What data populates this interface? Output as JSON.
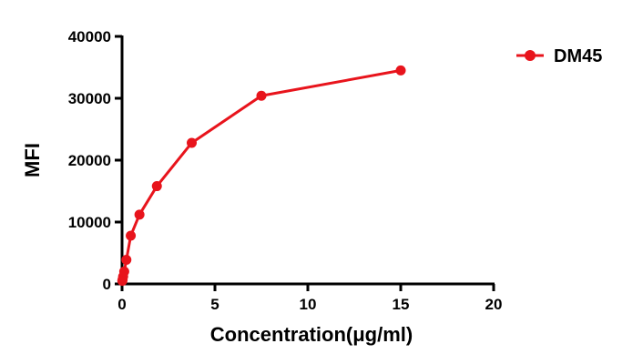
{
  "chart_data": {
    "type": "line",
    "xlabel": "Concentration(μg/ml)",
    "ylabel": "MFI",
    "xlim": [
      0,
      20
    ],
    "ylim": [
      0,
      40000
    ],
    "x_ticks": [
      0,
      5,
      10,
      15,
      20
    ],
    "y_ticks": [
      0,
      10000,
      20000,
      30000,
      40000
    ],
    "x_tick_labels": [
      "0",
      "5",
      "10",
      "15",
      "20"
    ],
    "y_tick_labels": [
      "0",
      "10000",
      "20000",
      "30000",
      "40000"
    ],
    "grid": false,
    "legend_position": "top-right",
    "series": [
      {
        "name": "DM45",
        "color": "#e8141c",
        "marker": "circle",
        "x": [
          0.0146,
          0.0293,
          0.0586,
          0.117,
          0.234,
          0.469,
          0.938,
          1.875,
          3.75,
          7.5,
          15
        ],
        "y": [
          500,
          700,
          1200,
          2000,
          3900,
          7800,
          11200,
          15800,
          22800,
          30400,
          34500
        ]
      }
    ]
  }
}
